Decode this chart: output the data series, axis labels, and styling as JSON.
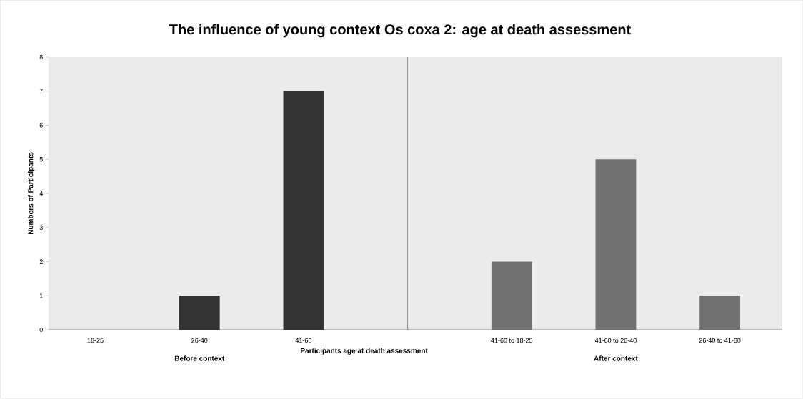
{
  "chart_data": {
    "type": "bar",
    "title": "The influence of young context Os coxa 2: age at death assessment",
    "xlabel": "Participants age at death assessment",
    "ylabel": "Numbers of Participants",
    "categories": [
      "18-25",
      "26-40",
      "41-60",
      null,
      "41-60 to 18-25",
      "41-60 to 26-40",
      "26-40 to 41-60"
    ],
    "series": [
      {
        "color": "#333333",
        "values": [
          0,
          1,
          7,
          null,
          null,
          null,
          null
        ]
      },
      {
        "color": "#717171",
        "values": [
          null,
          null,
          null,
          null,
          2,
          5,
          1
        ]
      }
    ],
    "ylim": [
      0,
      8
    ],
    "yticks": [
      0,
      1,
      2,
      3,
      4,
      5,
      6,
      7,
      8
    ],
    "annotations": [
      "Before context",
      "After context"
    ]
  }
}
